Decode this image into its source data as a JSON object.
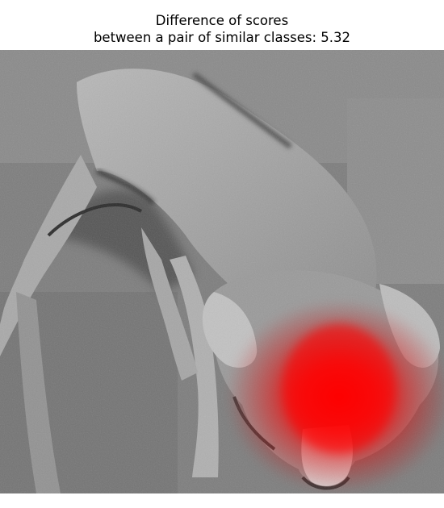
{
  "title": {
    "line1": "Difference of scores",
    "line2": "between a pair of similar classes: 5.32"
  },
  "figure": {
    "description_icon": "dog-photo-with-heatmap",
    "heatmap_color": "#ff0000",
    "photo_tone": "grayscale"
  }
}
